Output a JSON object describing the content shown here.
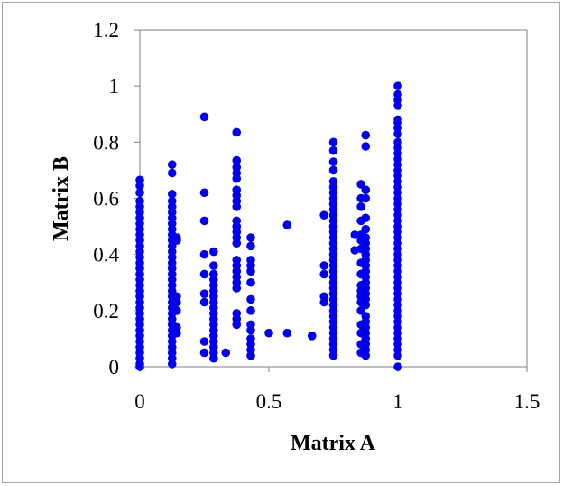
{
  "chart_data": {
    "type": "scatter",
    "title": "",
    "xlabel": "Matrix A",
    "ylabel": "Matrix B",
    "xlim": [
      0,
      1.5
    ],
    "ylim": [
      0,
      1.2
    ],
    "x_ticks": [
      "0",
      "0.5",
      "1",
      "1.5"
    ],
    "y_ticks": [
      "0",
      "0.2",
      "0.4",
      "0.6",
      "0.8",
      "1",
      "1.2"
    ],
    "x_tick_values": [
      0,
      0.5,
      1,
      1.5
    ],
    "y_tick_values": [
      0,
      0.2,
      0.4,
      0.6,
      0.8,
      1,
      1.2
    ],
    "grid": false,
    "legend": "none",
    "marker_color": "#0000ee",
    "series": [
      {
        "points": [
          [
            0,
            0.0
          ],
          [
            0,
            0.01
          ],
          [
            0,
            0.03
          ],
          [
            0,
            0.05
          ],
          [
            0,
            0.07
          ],
          [
            0,
            0.09
          ],
          [
            0,
            0.11
          ],
          [
            0,
            0.13
          ],
          [
            0,
            0.15
          ],
          [
            0,
            0.17
          ],
          [
            0,
            0.19
          ],
          [
            0,
            0.21
          ],
          [
            0,
            0.23
          ],
          [
            0,
            0.25
          ],
          [
            0,
            0.27
          ],
          [
            0,
            0.29
          ],
          [
            0,
            0.31
          ],
          [
            0,
            0.33
          ],
          [
            0,
            0.35
          ],
          [
            0,
            0.37
          ],
          [
            0,
            0.39
          ],
          [
            0,
            0.41
          ],
          [
            0,
            0.43
          ],
          [
            0,
            0.45
          ],
          [
            0,
            0.47
          ],
          [
            0,
            0.49
          ],
          [
            0,
            0.51
          ],
          [
            0,
            0.53
          ],
          [
            0,
            0.55
          ],
          [
            0,
            0.57
          ],
          [
            0,
            0.59
          ],
          [
            0,
            0.62
          ],
          [
            0,
            0.645
          ],
          [
            0,
            0.665
          ],
          [
            0.125,
            0.01
          ],
          [
            0.125,
            0.03
          ],
          [
            0.125,
            0.05
          ],
          [
            0.125,
            0.07
          ],
          [
            0.125,
            0.09
          ],
          [
            0.125,
            0.11
          ],
          [
            0.125,
            0.13
          ],
          [
            0.125,
            0.15
          ],
          [
            0.125,
            0.17
          ],
          [
            0.125,
            0.19
          ],
          [
            0.125,
            0.21
          ],
          [
            0.125,
            0.23
          ],
          [
            0.125,
            0.25
          ],
          [
            0.125,
            0.27
          ],
          [
            0.125,
            0.29
          ],
          [
            0.125,
            0.31
          ],
          [
            0.125,
            0.33
          ],
          [
            0.125,
            0.35
          ],
          [
            0.125,
            0.37
          ],
          [
            0.125,
            0.39
          ],
          [
            0.125,
            0.41
          ],
          [
            0.125,
            0.43
          ],
          [
            0.125,
            0.45
          ],
          [
            0.125,
            0.47
          ],
          [
            0.125,
            0.49
          ],
          [
            0.125,
            0.51
          ],
          [
            0.125,
            0.53
          ],
          [
            0.125,
            0.55
          ],
          [
            0.125,
            0.57
          ],
          [
            0.125,
            0.59
          ],
          [
            0.125,
            0.615
          ],
          [
            0.125,
            0.69
          ],
          [
            0.125,
            0.72
          ],
          [
            0.143,
            0.12
          ],
          [
            0.143,
            0.14
          ],
          [
            0.143,
            0.2
          ],
          [
            0.143,
            0.23
          ],
          [
            0.143,
            0.25
          ],
          [
            0.143,
            0.45
          ],
          [
            0.143,
            0.46
          ],
          [
            0.25,
            0.05
          ],
          [
            0.25,
            0.09
          ],
          [
            0.25,
            0.23
          ],
          [
            0.25,
            0.26
          ],
          [
            0.25,
            0.33
          ],
          [
            0.25,
            0.4
          ],
          [
            0.25,
            0.52
          ],
          [
            0.25,
            0.62
          ],
          [
            0.25,
            0.89
          ],
          [
            0.286,
            0.03
          ],
          [
            0.286,
            0.05
          ],
          [
            0.286,
            0.07
          ],
          [
            0.286,
            0.09
          ],
          [
            0.286,
            0.11
          ],
          [
            0.286,
            0.13
          ],
          [
            0.286,
            0.15
          ],
          [
            0.286,
            0.17
          ],
          [
            0.286,
            0.19
          ],
          [
            0.286,
            0.21
          ],
          [
            0.286,
            0.23
          ],
          [
            0.286,
            0.25
          ],
          [
            0.286,
            0.27
          ],
          [
            0.286,
            0.29
          ],
          [
            0.286,
            0.31
          ],
          [
            0.286,
            0.33
          ],
          [
            0.286,
            0.36
          ],
          [
            0.286,
            0.41
          ],
          [
            0.333,
            0.05
          ],
          [
            0.375,
            0.15
          ],
          [
            0.375,
            0.17
          ],
          [
            0.375,
            0.19
          ],
          [
            0.375,
            0.28
          ],
          [
            0.375,
            0.3
          ],
          [
            0.375,
            0.32
          ],
          [
            0.375,
            0.34
          ],
          [
            0.375,
            0.36
          ],
          [
            0.375,
            0.38
          ],
          [
            0.375,
            0.44
          ],
          [
            0.375,
            0.46
          ],
          [
            0.375,
            0.48
          ],
          [
            0.375,
            0.5
          ],
          [
            0.375,
            0.52
          ],
          [
            0.375,
            0.57
          ],
          [
            0.375,
            0.59
          ],
          [
            0.375,
            0.61
          ],
          [
            0.375,
            0.63
          ],
          [
            0.375,
            0.67
          ],
          [
            0.375,
            0.69
          ],
          [
            0.375,
            0.71
          ],
          [
            0.375,
            0.735
          ],
          [
            0.375,
            0.835
          ],
          [
            0.43,
            0.04
          ],
          [
            0.43,
            0.06
          ],
          [
            0.43,
            0.08
          ],
          [
            0.43,
            0.1
          ],
          [
            0.43,
            0.13
          ],
          [
            0.43,
            0.15
          ],
          [
            0.43,
            0.2
          ],
          [
            0.43,
            0.24
          ],
          [
            0.43,
            0.3
          ],
          [
            0.43,
            0.34
          ],
          [
            0.43,
            0.36
          ],
          [
            0.43,
            0.38
          ],
          [
            0.43,
            0.43
          ],
          [
            0.43,
            0.46
          ],
          [
            0.5,
            0.12
          ],
          [
            0.571,
            0.12
          ],
          [
            0.571,
            0.505
          ],
          [
            0.667,
            0.11
          ],
          [
            0.714,
            0.23
          ],
          [
            0.714,
            0.25
          ],
          [
            0.714,
            0.33
          ],
          [
            0.714,
            0.36
          ],
          [
            0.714,
            0.54
          ],
          [
            0.75,
            0.04
          ],
          [
            0.75,
            0.06
          ],
          [
            0.75,
            0.08
          ],
          [
            0.75,
            0.1
          ],
          [
            0.75,
            0.12
          ],
          [
            0.75,
            0.14
          ],
          [
            0.75,
            0.16
          ],
          [
            0.75,
            0.18
          ],
          [
            0.75,
            0.2
          ],
          [
            0.75,
            0.22
          ],
          [
            0.75,
            0.24
          ],
          [
            0.75,
            0.26
          ],
          [
            0.75,
            0.28
          ],
          [
            0.75,
            0.3
          ],
          [
            0.75,
            0.32
          ],
          [
            0.75,
            0.34
          ],
          [
            0.75,
            0.36
          ],
          [
            0.75,
            0.38
          ],
          [
            0.75,
            0.4
          ],
          [
            0.75,
            0.42
          ],
          [
            0.75,
            0.44
          ],
          [
            0.75,
            0.46
          ],
          [
            0.75,
            0.48
          ],
          [
            0.75,
            0.5
          ],
          [
            0.75,
            0.52
          ],
          [
            0.75,
            0.54
          ],
          [
            0.75,
            0.56
          ],
          [
            0.75,
            0.58
          ],
          [
            0.75,
            0.6
          ],
          [
            0.75,
            0.62
          ],
          [
            0.75,
            0.64
          ],
          [
            0.75,
            0.66
          ],
          [
            0.75,
            0.7
          ],
          [
            0.75,
            0.73
          ],
          [
            0.75,
            0.77
          ],
          [
            0.75,
            0.8
          ],
          [
            0.833,
            0.415
          ],
          [
            0.833,
            0.47
          ],
          [
            0.857,
            0.05
          ],
          [
            0.857,
            0.08
          ],
          [
            0.857,
            0.12
          ],
          [
            0.857,
            0.15
          ],
          [
            0.857,
            0.2
          ],
          [
            0.857,
            0.23
          ],
          [
            0.857,
            0.25
          ],
          [
            0.857,
            0.27
          ],
          [
            0.857,
            0.29
          ],
          [
            0.857,
            0.33
          ],
          [
            0.857,
            0.37
          ],
          [
            0.857,
            0.42
          ],
          [
            0.857,
            0.45
          ],
          [
            0.857,
            0.47
          ],
          [
            0.857,
            0.52
          ],
          [
            0.857,
            0.57
          ],
          [
            0.857,
            0.6
          ],
          [
            0.857,
            0.65
          ],
          [
            0.875,
            0.04
          ],
          [
            0.875,
            0.06
          ],
          [
            0.875,
            0.08
          ],
          [
            0.875,
            0.1
          ],
          [
            0.875,
            0.12
          ],
          [
            0.875,
            0.14
          ],
          [
            0.875,
            0.16
          ],
          [
            0.875,
            0.18
          ],
          [
            0.875,
            0.22
          ],
          [
            0.875,
            0.24
          ],
          [
            0.875,
            0.26
          ],
          [
            0.875,
            0.28
          ],
          [
            0.875,
            0.3
          ],
          [
            0.875,
            0.32
          ],
          [
            0.875,
            0.34
          ],
          [
            0.875,
            0.36
          ],
          [
            0.875,
            0.38
          ],
          [
            0.875,
            0.4
          ],
          [
            0.875,
            0.42
          ],
          [
            0.875,
            0.44
          ],
          [
            0.875,
            0.46
          ],
          [
            0.875,
            0.49
          ],
          [
            0.875,
            0.53
          ],
          [
            0.875,
            0.6
          ],
          [
            0.875,
            0.63
          ],
          [
            0.875,
            0.785
          ],
          [
            0.875,
            0.825
          ],
          [
            1,
            0.0
          ],
          [
            1,
            0.04
          ],
          [
            1,
            0.06
          ],
          [
            1,
            0.08
          ],
          [
            1,
            0.1
          ],
          [
            1,
            0.12
          ],
          [
            1,
            0.14
          ],
          [
            1,
            0.16
          ],
          [
            1,
            0.18
          ],
          [
            1,
            0.2
          ],
          [
            1,
            0.22
          ],
          [
            1,
            0.24
          ],
          [
            1,
            0.26
          ],
          [
            1,
            0.28
          ],
          [
            1,
            0.3
          ],
          [
            1,
            0.32
          ],
          [
            1,
            0.34
          ],
          [
            1,
            0.36
          ],
          [
            1,
            0.38
          ],
          [
            1,
            0.4
          ],
          [
            1,
            0.42
          ],
          [
            1,
            0.44
          ],
          [
            1,
            0.46
          ],
          [
            1,
            0.48
          ],
          [
            1,
            0.5
          ],
          [
            1,
            0.52
          ],
          [
            1,
            0.54
          ],
          [
            1,
            0.56
          ],
          [
            1,
            0.58
          ],
          [
            1,
            0.6
          ],
          [
            1,
            0.62
          ],
          [
            1,
            0.64
          ],
          [
            1,
            0.66
          ],
          [
            1,
            0.68
          ],
          [
            1,
            0.7
          ],
          [
            1,
            0.72
          ],
          [
            1,
            0.74
          ],
          [
            1,
            0.76
          ],
          [
            1,
            0.78
          ],
          [
            1,
            0.8
          ],
          [
            1,
            0.83
          ],
          [
            1,
            0.85
          ],
          [
            1,
            0.87
          ],
          [
            1,
            0.88
          ],
          [
            1,
            0.93
          ],
          [
            1,
            0.95
          ],
          [
            1,
            0.97
          ],
          [
            1,
            1.0
          ]
        ]
      }
    ]
  }
}
